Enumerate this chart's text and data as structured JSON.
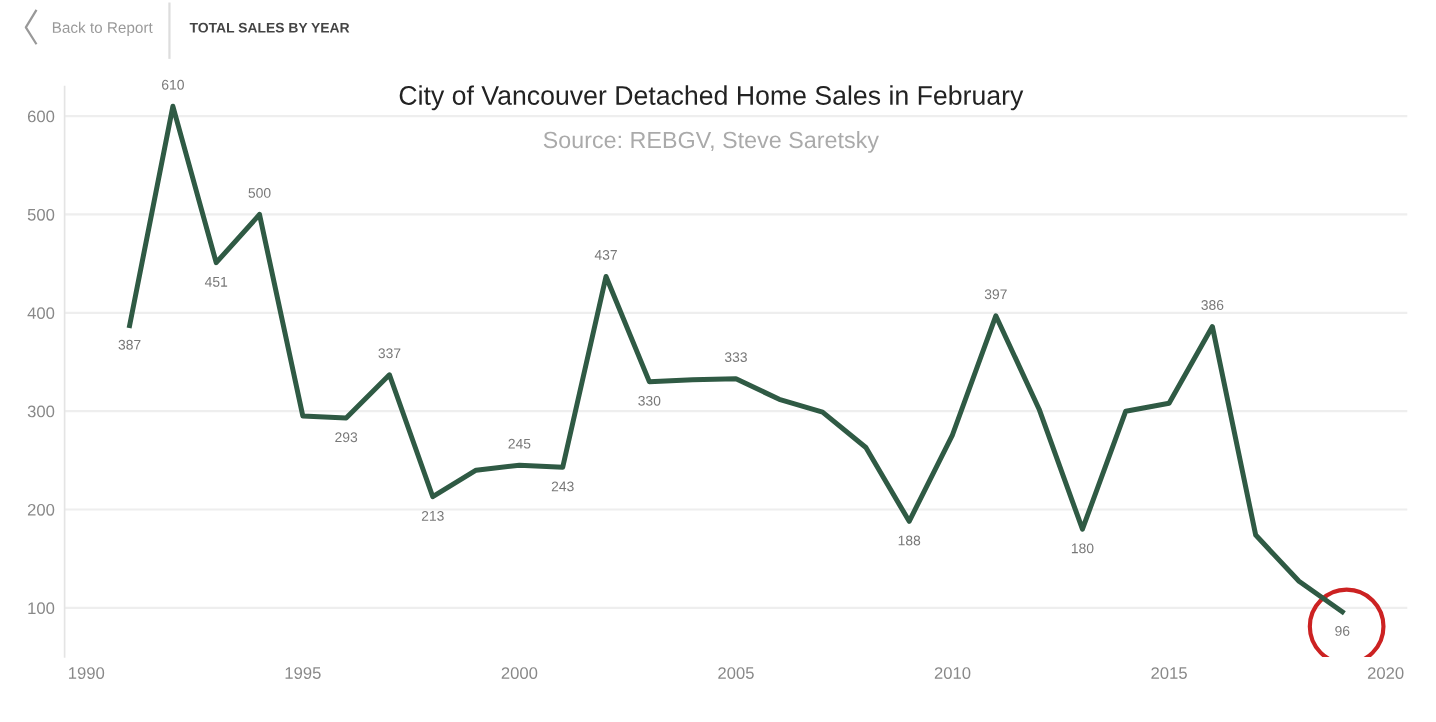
{
  "chart_data": {
    "type": "line",
    "title": "City of Vancouver Detached Home Sales in February",
    "subtitle": "Source: REBGV, Steve Saretsky",
    "annotations": [
      "Back to Report",
      "TOTAL SALES BY YEAR"
    ],
    "x": [
      1991,
      1992,
      1993,
      1994,
      1995,
      1996,
      1997,
      1998,
      1999,
      2000,
      2001,
      2002,
      2003,
      2004,
      2005,
      2006,
      2007,
      2008,
      2009,
      2010,
      2011,
      2012,
      2013,
      2014,
      2015,
      2016,
      2017,
      2018,
      2019
    ],
    "series": [
      {
        "color": "#2f5a44",
        "values": [
          387,
          610,
          451,
          500,
          295,
          293,
          337,
          213,
          240,
          245,
          243,
          437,
          330,
          332,
          333,
          312,
          299,
          263,
          188,
          276,
          397,
          302,
          180,
          300,
          308,
          386,
          174,
          127,
          96
        ],
        "value_labels": [
          "387",
          "610",
          "451",
          "500",
          null,
          "293",
          "337",
          "213",
          null,
          "245",
          "243",
          "437",
          "330",
          null,
          "333",
          null,
          null,
          null,
          "188",
          null,
          "397",
          null,
          "180",
          null,
          null,
          "386",
          null,
          null,
          "96"
        ]
      }
    ],
    "xlim": [
      1989.5,
      2020.5
    ],
    "xticks": [
      1990,
      1995,
      2000,
      2005,
      2010,
      2015,
      2020
    ],
    "ylim": [
      50,
      630
    ],
    "yticks": [
      100,
      200,
      300,
      400,
      500,
      600
    ],
    "grid": "y",
    "marker": "none",
    "line_style": "solid"
  }
}
